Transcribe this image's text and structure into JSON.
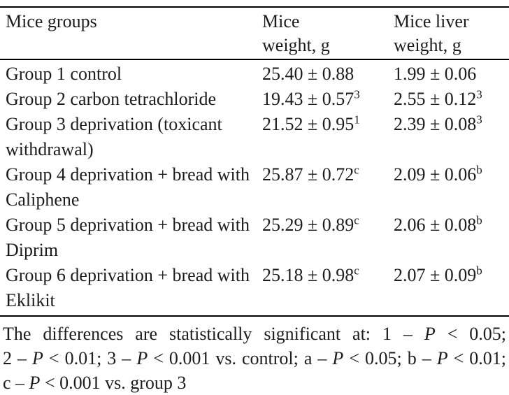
{
  "colors": {
    "background": "#ffffff",
    "text": "#1c1c1c",
    "rule": "#000000"
  },
  "table": {
    "columns": [
      "Mice groups",
      "Mice weight, g",
      "Mice liver weight, g"
    ],
    "header_lines": [
      [
        "Mice groups"
      ],
      [
        "Mice",
        "weight, g"
      ],
      [
        "Mice liver",
        "weight, g"
      ]
    ],
    "rows": [
      {
        "group": "Group 1 control",
        "mice_weight": "25.40 ± 0.88",
        "mice_weight_sup": "",
        "liver_weight": "1.99 ± 0.06",
        "liver_weight_sup": ""
      },
      {
        "group": "Group 2 carbon tetrachloride",
        "mice_weight": "19.43 ± 0.57",
        "mice_weight_sup": "3",
        "liver_weight": "2.55 ± 0.12",
        "liver_weight_sup": "3"
      },
      {
        "group": "Group 3 deprivation (toxicant withdrawal)",
        "mice_weight": "21.52 ± 0.95",
        "mice_weight_sup": "1",
        "liver_weight": "2.39 ± 0.08",
        "liver_weight_sup": "3"
      },
      {
        "group": "Group 4 deprivation + bread with Caliphene",
        "mice_weight": "25.87 ± 0.72",
        "mice_weight_sup": "c",
        "liver_weight": "2.09 ± 0.06",
        "liver_weight_sup": "b"
      },
      {
        "group": "Group 5 deprivation + bread with Diprim",
        "mice_weight": "25.29 ± 0.89",
        "mice_weight_sup": "c",
        "liver_weight": "2.06 ± 0.08",
        "liver_weight_sup": "b"
      },
      {
        "group": "Group 6 deprivation + bread with Eklikit",
        "mice_weight": "25.18 ± 0.98",
        "mice_weight_sup": "c",
        "liver_weight": "2.07 ± 0.09",
        "liver_weight_sup": "b"
      }
    ]
  },
  "footnote": {
    "lines": [
      "The differences are statistically significant at: 1 – P < 0.05;",
      "2 – P < 0.01; 3 – P < 0.001 vs. control; a – P < 0.05; b – P < 0.01;",
      "c – P < 0.001 vs. group 3"
    ]
  }
}
